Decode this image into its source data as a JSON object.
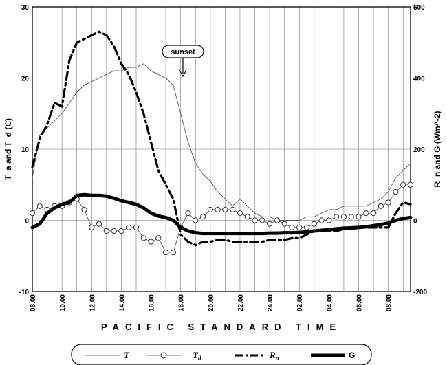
{
  "chart_data": {
    "type": "line",
    "xlabel": "PACIFIC STANDARD TIME",
    "ylabel_left": "T_a and T_d (C)",
    "ylabel_right": "R_n and G (Wm^-2)",
    "ylim_left": [
      -10,
      30
    ],
    "ylim_right": [
      -200,
      600
    ],
    "xlim_hours": [
      8,
      33.5
    ],
    "yticks_left": [
      "-10",
      "0",
      "10",
      "20",
      "30"
    ],
    "yticks_right": [
      "-200",
      "0",
      "200",
      "400",
      "600"
    ],
    "xticks": [
      "08.00",
      "10.00",
      "12.00",
      "14.00",
      "16.00",
      "18.00",
      "20.00",
      "22.00",
      "24.00",
      "02.00",
      "04.00",
      "06.00",
      "08.00"
    ],
    "grid": true,
    "annotation": {
      "text": "sunset",
      "hour": 18.5
    },
    "legend": {
      "placement": "bottom",
      "entries": [
        {
          "label": "T",
          "sub": "",
          "style": "thin"
        },
        {
          "label": "T",
          "sub": "d",
          "style": "circles"
        },
        {
          "label": "R",
          "sub": "n",
          "style": "dashdot"
        },
        {
          "label": "G",
          "sub": "",
          "style": "thick"
        }
      ]
    },
    "series": [
      {
        "name": "T",
        "axis": "left",
        "x": [
          8,
          8.5,
          9,
          9.5,
          10,
          10.5,
          11,
          11.5,
          12,
          12.5,
          13,
          13.5,
          14,
          14.5,
          15,
          15.5,
          16,
          16.5,
          17,
          17.5,
          18,
          18.5,
          19,
          19.5,
          20,
          20.5,
          21,
          21.5,
          22,
          22.5,
          23,
          23.5,
          24,
          24.5,
          25,
          25.5,
          26,
          26.5,
          27,
          27.5,
          28,
          28.5,
          29,
          29.5,
          30,
          30.5,
          31,
          31.5,
          32,
          32.5,
          33,
          33.5
        ],
        "y": [
          6,
          12,
          13,
          14,
          15,
          16.5,
          18,
          19,
          19.5,
          20,
          20.5,
          21,
          21,
          21.5,
          21.5,
          22,
          21,
          20.5,
          20,
          19,
          15,
          11,
          8,
          6.5,
          5.5,
          4,
          3,
          2,
          3,
          2,
          1,
          0.5,
          0.5,
          0,
          0,
          0,
          0,
          0.5,
          0.5,
          1,
          1.5,
          1.5,
          2,
          2,
          2,
          2,
          2.5,
          3,
          4,
          6,
          7,
          8
        ]
      },
      {
        "name": "T_d",
        "axis": "left",
        "x": [
          8,
          8.5,
          9,
          9.5,
          10,
          10.5,
          11,
          11.5,
          12,
          12.5,
          13,
          13.5,
          14,
          14.5,
          15,
          15.5,
          16,
          16.5,
          17,
          17.5,
          18,
          18.5,
          19,
          19.5,
          20,
          20.5,
          21,
          21.5,
          22,
          22.5,
          23,
          23.5,
          24,
          24.5,
          25,
          25.5,
          26,
          26.5,
          27,
          27.5,
          28,
          28.5,
          29,
          29.5,
          30,
          30.5,
          31,
          31.5,
          32,
          32.5,
          33,
          33.5
        ],
        "y": [
          1,
          2,
          1.5,
          2,
          2,
          2.5,
          3,
          1.5,
          -1,
          -0.5,
          -1.5,
          -1.5,
          -1.5,
          -1,
          -1,
          -2.5,
          -3,
          -2.5,
          -4.5,
          -4.5,
          -1,
          1,
          0,
          0.5,
          1.5,
          1.5,
          1.5,
          1.5,
          1,
          0.5,
          0,
          0,
          -0.5,
          0,
          -0.5,
          -1,
          -1,
          -1,
          -0.5,
          0,
          0,
          0.5,
          0.5,
          0.5,
          0.5,
          1,
          1,
          2,
          2.5,
          4,
          5,
          5
        ]
      },
      {
        "name": "R_n",
        "axis": "right",
        "x": [
          8,
          8.5,
          9,
          9.5,
          10,
          10.5,
          11,
          11.5,
          12,
          12.5,
          13,
          13.5,
          14,
          14.5,
          15,
          15.5,
          16,
          16.5,
          17,
          17.5,
          18,
          18.5,
          19,
          19.5,
          20,
          20.5,
          21,
          21.5,
          22,
          22.5,
          23,
          23.5,
          24,
          24.5,
          25,
          25.5,
          26,
          26.5,
          27,
          27.5,
          28,
          28.5,
          29,
          29.5,
          30,
          30.5,
          31,
          31.5,
          32,
          32.5,
          33,
          33.5
        ],
        "y": [
          150,
          230,
          270,
          330,
          320,
          450,
          500,
          510,
          520,
          530,
          520,
          490,
          440,
          410,
          360,
          300,
          220,
          140,
          100,
          60,
          -40,
          -60,
          -70,
          -60,
          -60,
          -55,
          -55,
          -60,
          -60,
          -60,
          -60,
          -60,
          -55,
          -55,
          -55,
          -50,
          -50,
          -40,
          -30,
          -30,
          -30,
          -30,
          -25,
          -25,
          -20,
          -20,
          -20,
          -20,
          -20,
          20,
          50,
          45
        ]
      },
      {
        "name": "G",
        "axis": "right",
        "x": [
          8,
          8.5,
          9,
          9.5,
          10,
          10.5,
          11,
          11.5,
          12,
          12.5,
          13,
          13.5,
          14,
          14.5,
          15,
          15.5,
          16,
          16.5,
          17,
          17.5,
          18,
          18.5,
          19,
          19.5,
          20,
          20.5,
          21,
          21.5,
          22,
          22.5,
          23,
          23.5,
          24,
          24.5,
          25,
          25.5,
          26,
          26.5,
          27,
          27.5,
          28,
          28.5,
          29,
          29.5,
          30,
          30.5,
          31,
          31.5,
          32,
          32.5,
          33,
          33.5
        ],
        "y": [
          -20,
          -10,
          20,
          35,
          45,
          50,
          70,
          72,
          70,
          70,
          68,
          62,
          55,
          50,
          45,
          35,
          20,
          12,
          8,
          0,
          -20,
          -30,
          -35,
          -37,
          -37,
          -37,
          -37,
          -37,
          -37,
          -37,
          -37,
          -37,
          -36,
          -36,
          -35,
          -35,
          -34,
          -32,
          -30,
          -28,
          -26,
          -24,
          -22,
          -21,
          -20,
          -18,
          -15,
          -12,
          -8,
          0,
          5,
          8
        ]
      }
    ]
  }
}
